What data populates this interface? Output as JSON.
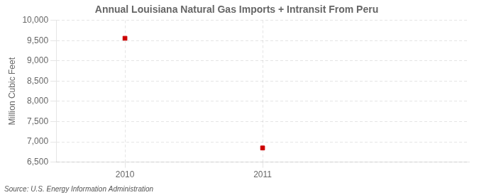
{
  "chart_data": {
    "type": "scatter",
    "title": "Annual Louisiana Natural Gas Imports + Intransit From Peru",
    "ylabel": "Million Cubic Feet",
    "annotations": [
      "Source: U.S. Energy Information Administration"
    ],
    "x": [
      2010,
      2011
    ],
    "values": [
      9559,
      6849
    ],
    "color": "#cc0000",
    "marker": "square",
    "xlim": [
      2009.5,
      2012.5
    ],
    "xticks": [
      2010,
      2011
    ],
    "ylim": [
      6500,
      10000
    ],
    "yticks": [
      {
        "value": 6500,
        "label": "6,500"
      },
      {
        "value": 7000,
        "label": "7,000"
      },
      {
        "value": 7500,
        "label": "7,500"
      },
      {
        "value": 8000,
        "label": "8,000"
      },
      {
        "value": 8500,
        "label": "8,500"
      },
      {
        "value": 9000,
        "label": "9,000"
      },
      {
        "value": 9500,
        "label": "9,500"
      },
      {
        "value": 10000,
        "label": "10,000"
      }
    ],
    "grid": true
  }
}
